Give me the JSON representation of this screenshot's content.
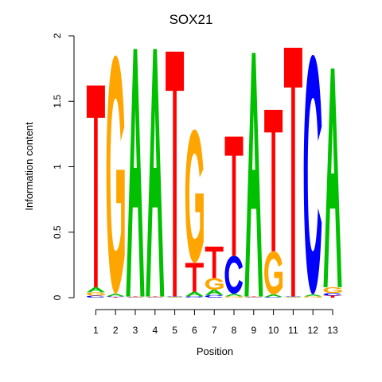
{
  "chart_data": {
    "type": "sequence-logo",
    "title": "SOX21",
    "xlabel": "Position",
    "ylabel": "Information content",
    "ylim": [
      0,
      2
    ],
    "yticks": [
      "0",
      "0.5",
      "1",
      "1.5",
      "2"
    ],
    "positions": [
      "1",
      "2",
      "3",
      "4",
      "5",
      "6",
      "7",
      "8",
      "9",
      "10",
      "11",
      "12",
      "13"
    ],
    "base_colors": {
      "A": "#00c000",
      "C": "#0000ff",
      "G": "#ffa500",
      "T": "#ff0000"
    },
    "stacks": [
      [
        {
          "b": "C",
          "h": 0.015
        },
        {
          "b": "G",
          "h": 0.025
        },
        {
          "b": "A",
          "h": 0.04
        },
        {
          "b": "T",
          "h": 1.54
        }
      ],
      [
        {
          "b": "T",
          "h": 0.005
        },
        {
          "b": "C",
          "h": 0.005
        },
        {
          "b": "A",
          "h": 0.02
        },
        {
          "b": "G",
          "h": 1.82
        }
      ],
      [
        {
          "b": "C",
          "h": 0.003
        },
        {
          "b": "G",
          "h": 0.003
        },
        {
          "b": "T",
          "h": 0.003
        },
        {
          "b": "A",
          "h": 1.89
        }
      ],
      [
        {
          "b": "C",
          "h": 0.003
        },
        {
          "b": "G",
          "h": 0.003
        },
        {
          "b": "T",
          "h": 0.003
        },
        {
          "b": "A",
          "h": 1.89
        }
      ],
      [
        {
          "b": "A",
          "h": 0.003
        },
        {
          "b": "G",
          "h": 0.003
        },
        {
          "b": "C",
          "h": 0.003
        },
        {
          "b": "T",
          "h": 1.87
        }
      ],
      [
        {
          "b": "C",
          "h": 0.01
        },
        {
          "b": "A",
          "h": 0.035
        },
        {
          "b": "T",
          "h": 0.22
        },
        {
          "b": "G",
          "h": 1.02
        }
      ],
      [
        {
          "b": "C",
          "h": 0.02
        },
        {
          "b": "A",
          "h": 0.04
        },
        {
          "b": "G",
          "h": 0.09
        },
        {
          "b": "T",
          "h": 0.24
        }
      ],
      [
        {
          "b": "G",
          "h": 0.01
        },
        {
          "b": "A",
          "h": 0.02
        },
        {
          "b": "C",
          "h": 0.29
        },
        {
          "b": "T",
          "h": 0.91
        }
      ],
      [
        {
          "b": "C",
          "h": 0.003
        },
        {
          "b": "G",
          "h": 0.003
        },
        {
          "b": "T",
          "h": 0.003
        },
        {
          "b": "A",
          "h": 1.86
        }
      ],
      [
        {
          "b": "C",
          "h": 0.005
        },
        {
          "b": "A",
          "h": 0.02
        },
        {
          "b": "G",
          "h": 0.33
        },
        {
          "b": "T",
          "h": 1.08
        }
      ],
      [
        {
          "b": "A",
          "h": 0.003
        },
        {
          "b": "G",
          "h": 0.003
        },
        {
          "b": "C",
          "h": 0.003
        },
        {
          "b": "T",
          "h": 1.9
        }
      ],
      [
        {
          "b": "G",
          "h": 0.01
        },
        {
          "b": "A",
          "h": 0.015
        },
        {
          "b": "C",
          "h": 1.83
        }
      ],
      [
        {
          "b": "T",
          "h": 0.015
        },
        {
          "b": "C",
          "h": 0.02
        },
        {
          "b": "G",
          "h": 0.045
        },
        {
          "b": "A",
          "h": 1.67
        }
      ]
    ]
  }
}
